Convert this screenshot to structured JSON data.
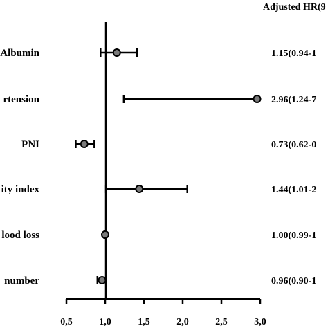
{
  "chart_data": {
    "type": "forest",
    "header": "Adjusted HR(9",
    "rows": [
      {
        "label": "Albumin",
        "hr": 1.15,
        "lo": 0.94,
        "hi": 1.41,
        "text": "1.15(0.94-1"
      },
      {
        "label": "rtension",
        "hr": 2.96,
        "lo": 1.24,
        "hi": 7.0,
        "text": "2.96(1.24-7"
      },
      {
        "label": "PNI",
        "hr": 0.73,
        "lo": 0.62,
        "hi": 0.86,
        "text": "0.73(0.62-0"
      },
      {
        "label": "ity index",
        "hr": 1.44,
        "lo": 1.01,
        "hi": 2.06,
        "text": "1.44(1.01-2"
      },
      {
        "label": "lood loss",
        "hr": 1.0,
        "lo": 0.99,
        "hi": 1.01,
        "text": "1.00(0.99-1"
      },
      {
        "label": "number",
        "hr": 0.96,
        "lo": 0.9,
        "hi": 1.01,
        "text": "0.96(0.90-1"
      }
    ],
    "xlim": [
      0.5,
      3.0
    ],
    "xticks": [
      0.5,
      1.0,
      1.5,
      2.0,
      2.5,
      3.0
    ],
    "xtick_labels": [
      "0,5",
      "1,0",
      "1,5",
      "2,0",
      "2,5",
      "3,0"
    ],
    "reference_line": 1.0
  }
}
